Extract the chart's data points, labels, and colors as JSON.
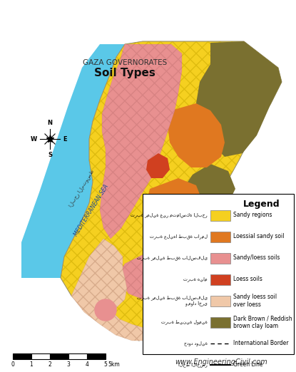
{
  "title1": "GAZA GOVERNORATES",
  "title2": "Soil Types",
  "legend_title": "Legend",
  "legend_items": [
    {
      "label": "Sandy regions",
      "color": "#F5D020"
    },
    {
      "label": "Loessial sandy soil",
      "color": "#E07820"
    },
    {
      "label": "Sandy/loess soils",
      "color": "#E89090"
    },
    {
      "label": "Loess soils",
      "color": "#D04020"
    },
    {
      "label": "Sandy loess soil\nover loess",
      "color": "#F0C8A8"
    },
    {
      "label": "Dark Brown / Reddish\nbrown clay loam",
      "color": "#7A7030"
    }
  ],
  "arabic_labels": [
    "تربة رملية غير متماسكة البحر",
    "تربة عليها طبقة بارمل",
    "تربة رملية طبقة بالسفلى",
    "تربة هيام",
    "تربة رملية طبقة بالسفلى\nو مواد أخرى",
    "تربة طينية لومية"
  ],
  "sea_color": "#5AC8E8",
  "background_color": "#FFFFFF",
  "website": "www.EngineeringCivil.com",
  "color_yellow": "#F5D020",
  "color_orange": "#E07820",
  "color_pink": "#E89090",
  "color_red": "#D04020",
  "color_peach": "#F0C8A8",
  "color_dark": "#7A7030",
  "color_sea": "#5AC8E8"
}
